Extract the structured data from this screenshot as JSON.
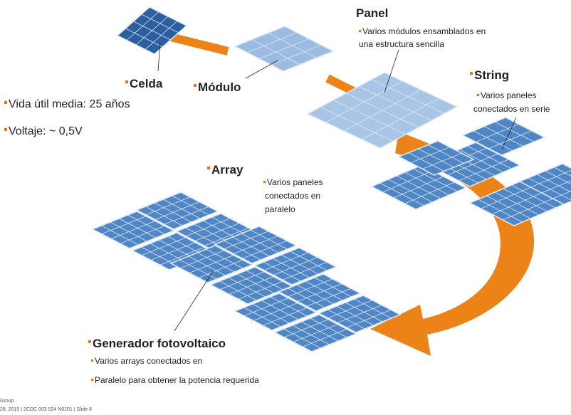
{
  "cell": {
    "label": "Celda",
    "notes": [
      "Vida útil media: 25 años",
      "Voltaje: ~ 0,5V"
    ]
  },
  "module": {
    "label": "Módulo"
  },
  "panel": {
    "label": "Panel",
    "notes": [
      "Varios módulos ensamblados en",
      "una estructura sencilla"
    ]
  },
  "string": {
    "label": "String",
    "notes": [
      "Varios paneles",
      "conectados en serie"
    ]
  },
  "array": {
    "label": "Array",
    "notes": [
      "Varios paneles",
      "conectados en",
      "paralelo"
    ]
  },
  "generator": {
    "label": "Generador fotovoltaico",
    "notes": [
      "Varios arrays conectados en",
      "Paralelo para obtener la potencia requerida"
    ]
  },
  "footer": {
    "lines": [
      "Group",
      "28, 2015 | 2CDC 003 024 N0201 | Slide 8"
    ]
  }
}
